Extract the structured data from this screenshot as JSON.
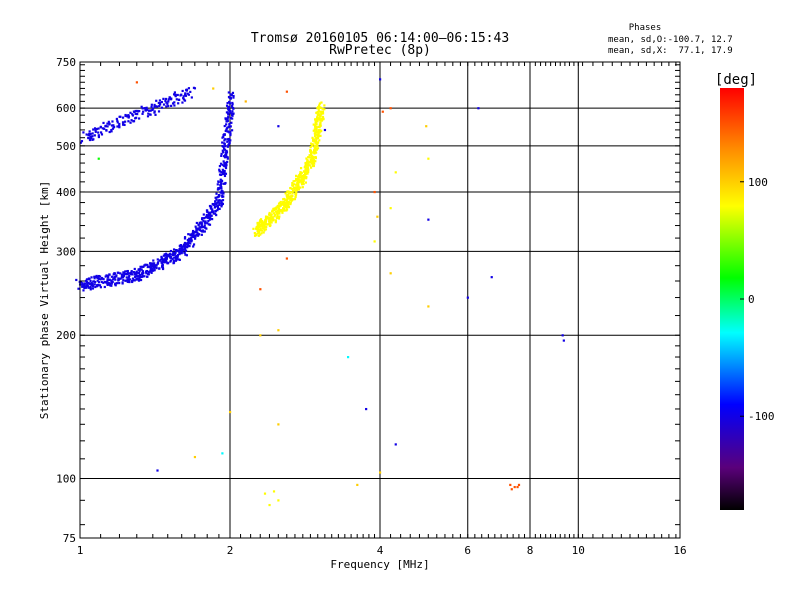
{
  "chart_data": {
    "type": "scatter",
    "title": "Tromsø 20160105 06:14:00–06:15:43",
    "subtitle": "RwPretec (8p)",
    "xlabel": "Frequency [MHz]",
    "ylabel": "Stationary phase Virtual Height [km]",
    "x_scale": "log2",
    "y_scale": "log",
    "xlim": [
      1,
      16
    ],
    "ylim": [
      75,
      750
    ],
    "x_ticks": [
      1,
      2,
      4,
      6,
      8,
      10,
      16
    ],
    "x_tick_labels": [
      "1",
      "2",
      "4",
      "6",
      "8",
      "10",
      "16"
    ],
    "y_ticks": [
      75,
      100,
      200,
      300,
      400,
      500,
      600,
      750
    ],
    "y_tick_labels": [
      "75",
      "100",
      "200",
      "300",
      "400",
      "500",
      "600",
      "750"
    ],
    "grid": true,
    "phases_header": {
      "title": "Phases",
      "line1": "mean, sd,O:-100.7, 12.7",
      "line2": "mean, sd,X:  77.1, 17.9"
    },
    "colorbar": {
      "label": "[deg]",
      "range": [
        -180,
        180
      ],
      "ticks": [
        100,
        0,
        -100
      ],
      "tick_labels": [
        "100",
        "0",
        "-100"
      ],
      "colormap": "rainbow (black-purple-blue-cyan-green-yellow-orange-red)"
    },
    "series": [
      {
        "name": "O-mode F-layer trace",
        "phase_deg": -100,
        "segments": [
          {
            "from": [
              1.0,
              255
            ],
            "to": [
              1.3,
              268
            ]
          },
          {
            "from": [
              1.3,
              268
            ],
            "to": [
              1.6,
              300
            ]
          },
          {
            "from": [
              1.6,
              300
            ],
            "to": [
              1.9,
              380
            ]
          },
          {
            "from": [
              1.9,
              380
            ],
            "to": [
              2.02,
              640
            ]
          },
          {
            "from": [
              1.02,
              520
            ],
            "to": [
              1.68,
              650
            ]
          }
        ]
      },
      {
        "name": "X-mode F-layer trace",
        "phase_deg": 80,
        "segments": [
          {
            "from": [
              2.25,
              330
            ],
            "to": [
              2.6,
              380
            ]
          },
          {
            "from": [
              2.6,
              380
            ],
            "to": [
              2.9,
              460
            ]
          },
          {
            "from": [
              2.9,
              460
            ],
            "to": [
              3.05,
              600
            ]
          }
        ]
      },
      {
        "name": "E-layer echoes",
        "phase_deg": 80,
        "points": [
          [
            2.35,
            93
          ],
          [
            2.5,
            90
          ],
          [
            2.4,
            88
          ],
          [
            2.45,
            94
          ]
        ]
      },
      {
        "name": "scattered points",
        "points": [
          {
            "x": 1.3,
            "y": 680,
            "phase": 150
          },
          {
            "x": 1.85,
            "y": 660,
            "phase": 100
          },
          {
            "x": 2.15,
            "y": 620,
            "phase": 110
          },
          {
            "x": 2.6,
            "y": 650,
            "phase": 150
          },
          {
            "x": 4.0,
            "y": 690,
            "phase": -100
          },
          {
            "x": 4.05,
            "y": 590,
            "phase": 150
          },
          {
            "x": 4.2,
            "y": 600,
            "phase": 150
          },
          {
            "x": 4.95,
            "y": 550,
            "phase": 100
          },
          {
            "x": 6.3,
            "y": 600,
            "phase": -100
          },
          {
            "x": 2.5,
            "y": 550,
            "phase": -100
          },
          {
            "x": 3.1,
            "y": 540,
            "phase": -100
          },
          {
            "x": 1.09,
            "y": 470,
            "phase": 20
          },
          {
            "x": 4.3,
            "y": 440,
            "phase": 80
          },
          {
            "x": 5.0,
            "y": 470,
            "phase": 80
          },
          {
            "x": 3.9,
            "y": 400,
            "phase": 150
          },
          {
            "x": 4.2,
            "y": 370,
            "phase": 80
          },
          {
            "x": 3.95,
            "y": 355,
            "phase": 100
          },
          {
            "x": 5.0,
            "y": 350,
            "phase": -100
          },
          {
            "x": 3.9,
            "y": 315,
            "phase": 80
          },
          {
            "x": 2.6,
            "y": 290,
            "phase": 150
          },
          {
            "x": 4.2,
            "y": 270,
            "phase": 100
          },
          {
            "x": 6.7,
            "y": 265,
            "phase": -100
          },
          {
            "x": 6.0,
            "y": 240,
            "phase": -100
          },
          {
            "x": 2.3,
            "y": 250,
            "phase": 150
          },
          {
            "x": 5.0,
            "y": 230,
            "phase": 100
          },
          {
            "x": 9.3,
            "y": 200,
            "phase": -100
          },
          {
            "x": 9.35,
            "y": 195,
            "phase": -100
          },
          {
            "x": 2.3,
            "y": 200,
            "phase": 100
          },
          {
            "x": 2.5,
            "y": 205,
            "phase": 100
          },
          {
            "x": 3.45,
            "y": 180,
            "phase": -30
          },
          {
            "x": 3.75,
            "y": 140,
            "phase": -100
          },
          {
            "x": 2.0,
            "y": 138,
            "phase": 100
          },
          {
            "x": 2.5,
            "y": 130,
            "phase": 100
          },
          {
            "x": 4.3,
            "y": 118,
            "phase": -100
          },
          {
            "x": 1.93,
            "y": 113,
            "phase": -30
          },
          {
            "x": 1.7,
            "y": 111,
            "phase": 100
          },
          {
            "x": 1.43,
            "y": 104,
            "phase": -100
          },
          {
            "x": 4.0,
            "y": 103,
            "phase": 100
          },
          {
            "x": 3.6,
            "y": 97,
            "phase": 100
          },
          {
            "x": 7.3,
            "y": 97,
            "phase": 150
          },
          {
            "x": 7.35,
            "y": 95,
            "phase": 150
          },
          {
            "x": 7.55,
            "y": 96,
            "phase": 150
          },
          {
            "x": 7.6,
            "y": 97,
            "phase": 150
          },
          {
            "x": 7.45,
            "y": 96,
            "phase": 150
          }
        ]
      }
    ]
  }
}
